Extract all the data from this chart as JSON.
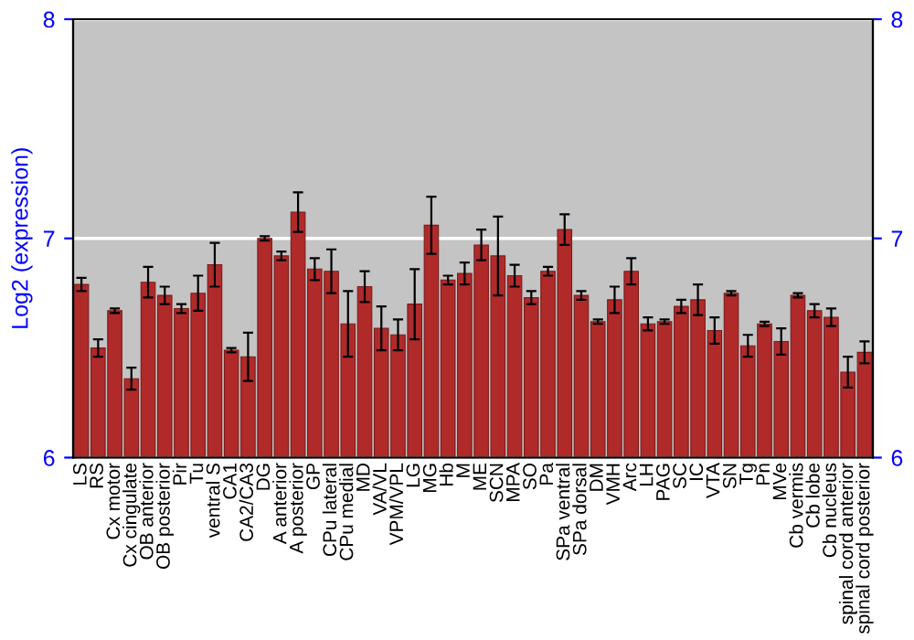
{
  "chart_data": {
    "type": "bar",
    "ylabel": "Log2 (expression)",
    "categories": [
      "LS",
      "RS",
      "Cx motor",
      "Cx cingulate",
      "OB anterior",
      "OB posterior",
      "Pir",
      "Tu",
      "ventral S",
      "CA1",
      "CA2/CA3",
      "DG",
      "A anterior",
      "A posterior",
      "GP",
      "CPu lateral",
      "CPu medial",
      "MD",
      "VA/VL",
      "VPM/VPL",
      "LG",
      "MG",
      "Hb",
      "M",
      "ME",
      "SCN",
      "MPA",
      "SO",
      "Pa",
      "SPa ventral",
      "SPa dorsal",
      "DM",
      "VMH",
      "Arc",
      "LH",
      "PAG",
      "SC",
      "IC",
      "VTA",
      "SN",
      "Tg",
      "Pn",
      "MVe",
      "Cb vermis",
      "Cb lobe",
      "Cb nucleus",
      "spinal cord anterior",
      "spinal cord posterior"
    ],
    "values": [
      6.79,
      6.5,
      6.67,
      6.36,
      6.8,
      6.74,
      6.68,
      6.75,
      6.88,
      6.49,
      6.46,
      7.0,
      6.92,
      7.12,
      6.86,
      6.85,
      6.61,
      6.78,
      6.59,
      6.56,
      6.7,
      7.06,
      6.81,
      6.84,
      6.97,
      6.92,
      6.83,
      6.73,
      6.85,
      7.04,
      6.74,
      6.62,
      6.72,
      6.85,
      6.61,
      6.62,
      6.69,
      6.72,
      6.58,
      6.75,
      6.51,
      6.61,
      6.53,
      6.74,
      6.67,
      6.64,
      6.39,
      6.48
    ],
    "errors": [
      0.03,
      0.04,
      0.01,
      0.05,
      0.07,
      0.04,
      0.02,
      0.08,
      0.1,
      0.01,
      0.11,
      0.01,
      0.02,
      0.09,
      0.05,
      0.1,
      0.15,
      0.07,
      0.1,
      0.07,
      0.16,
      0.13,
      0.02,
      0.05,
      0.07,
      0.18,
      0.05,
      0.03,
      0.02,
      0.07,
      0.02,
      0.01,
      0.06,
      0.06,
      0.03,
      0.01,
      0.03,
      0.07,
      0.06,
      0.01,
      0.05,
      0.01,
      0.06,
      0.01,
      0.03,
      0.04,
      0.07,
      0.05
    ],
    "color": "#b02a2a",
    "ylim": [
      6,
      8
    ],
    "yticks": [
      6,
      7,
      8
    ],
    "y2lim": [
      6,
      8
    ],
    "y2ticks": [
      6,
      7,
      8
    ],
    "grid": "y"
  }
}
